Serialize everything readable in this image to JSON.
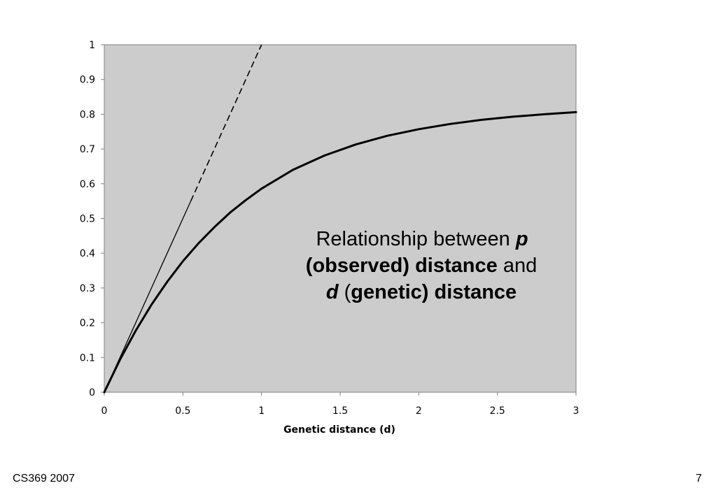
{
  "chart_data": {
    "type": "line",
    "xlabel": "Genetic distance (d)",
    "ylabel": "",
    "xlim": [
      0,
      3
    ],
    "ylim": [
      0,
      1
    ],
    "x_ticks": [
      "0",
      "0.5",
      "1",
      "1.5",
      "2",
      "2.5",
      "3"
    ],
    "y_ticks": [
      "0",
      "0.1",
      "0.2",
      "0.3",
      "0.4",
      "0.5",
      "0.6",
      "0.7",
      "0.8",
      "0.9",
      "1"
    ],
    "plot_background": "#cccccc",
    "grid": false,
    "series": [
      {
        "style": "thin solid, dashed above x=0.55",
        "x": [
          0,
          1
        ],
        "y": [
          0,
          1
        ]
      },
      {
        "style": "thick solid",
        "x": [
          0,
          0.1,
          0.2,
          0.3,
          0.4,
          0.5,
          0.6,
          0.7,
          0.8,
          0.9,
          1.0,
          1.2,
          1.4,
          1.6,
          1.8,
          2.0,
          2.2,
          2.4,
          2.6,
          2.8,
          3.0
        ],
        "y": [
          0,
          0.094,
          0.177,
          0.252,
          0.318,
          0.377,
          0.429,
          0.475,
          0.517,
          0.553,
          0.586,
          0.64,
          0.681,
          0.713,
          0.738,
          0.757,
          0.772,
          0.784,
          0.793,
          0.8,
          0.806
        ]
      }
    ],
    "annotation": {
      "line1_plain": "Relationship between ",
      "line1_bold_italic": "p",
      "line2_bold": "(observed) distance",
      "line2_plain": " and",
      "line3_bold_italic": "d",
      "line3_plain": " (",
      "line3_bold": "genetic) distance"
    }
  },
  "footer": {
    "left": "CS369 2007",
    "page_number": "7"
  }
}
